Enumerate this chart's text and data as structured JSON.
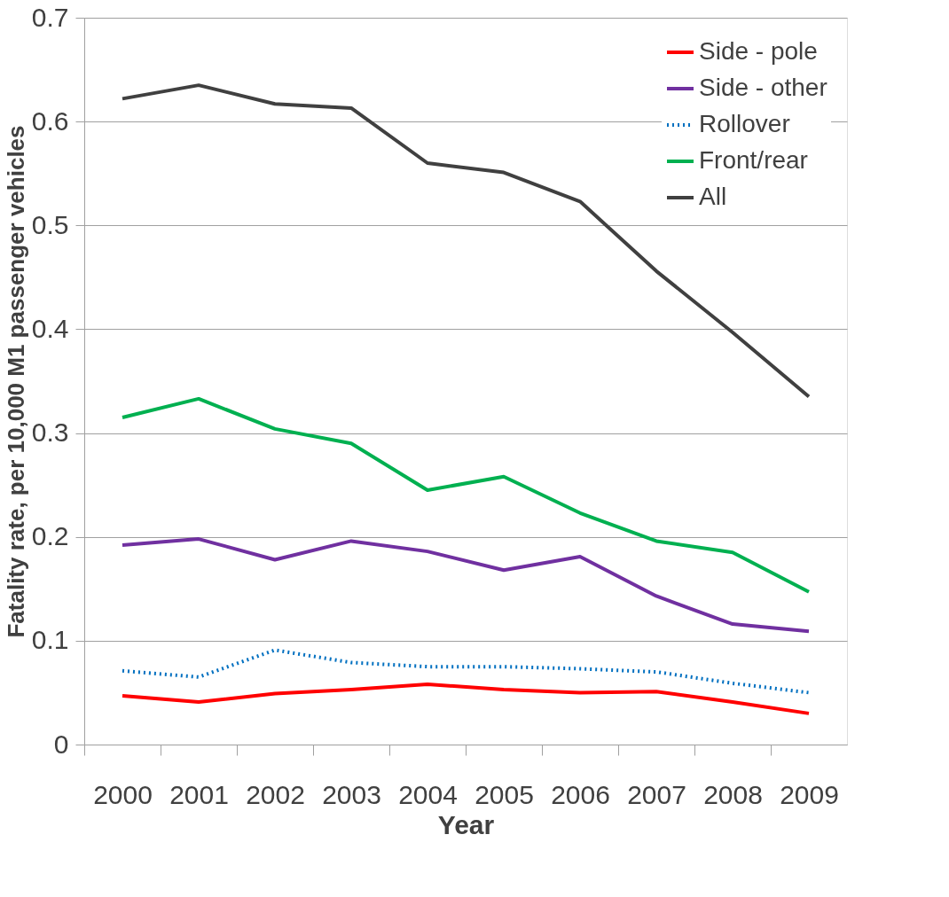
{
  "chart_data": {
    "type": "line",
    "xlabel": "Year",
    "ylabel": "Fatality rate, per 10,000 M1 passenger vehicles",
    "categories": [
      "2000",
      "2001",
      "2002",
      "2003",
      "2004",
      "2005",
      "2006",
      "2007",
      "2008",
      "2009"
    ],
    "ylim": [
      0,
      0.7
    ],
    "yticks": [
      {
        "value": 0,
        "label": "0"
      },
      0.1,
      0.2,
      0.3,
      0.4,
      0.5,
      0.6,
      0.7
    ],
    "grid": "y",
    "legend": "top right",
    "marker": "none",
    "series": [
      {
        "name": "Side - pole",
        "color": "#ff0000",
        "line_style": "solid",
        "values": [
          0.047,
          0.041,
          0.049,
          0.053,
          0.058,
          0.053,
          0.05,
          0.051,
          0.041,
          0.03
        ]
      },
      {
        "name": "Side - other",
        "color": "#7030a0",
        "line_style": "solid",
        "values": [
          0.192,
          0.198,
          0.178,
          0.196,
          0.186,
          0.168,
          0.181,
          0.143,
          0.116,
          0.109
        ]
      },
      {
        "name": "Rollover",
        "color": "#0070c0",
        "line_style": "dotted",
        "values": [
          0.071,
          0.065,
          0.091,
          0.079,
          0.075,
          0.075,
          0.073,
          0.07,
          0.059,
          0.05
        ]
      },
      {
        "name": "Front/rear",
        "color": "#00b050",
        "line_style": "solid",
        "values": [
          0.315,
          0.333,
          0.304,
          0.29,
          0.245,
          0.258,
          0.223,
          0.196,
          0.185,
          0.147
        ]
      },
      {
        "name": "All",
        "color": "#404040",
        "line_style": "solid",
        "values": [
          0.622,
          0.635,
          0.617,
          0.613,
          0.56,
          0.551,
          0.523,
          0.456,
          0.397,
          0.335
        ]
      }
    ]
  }
}
